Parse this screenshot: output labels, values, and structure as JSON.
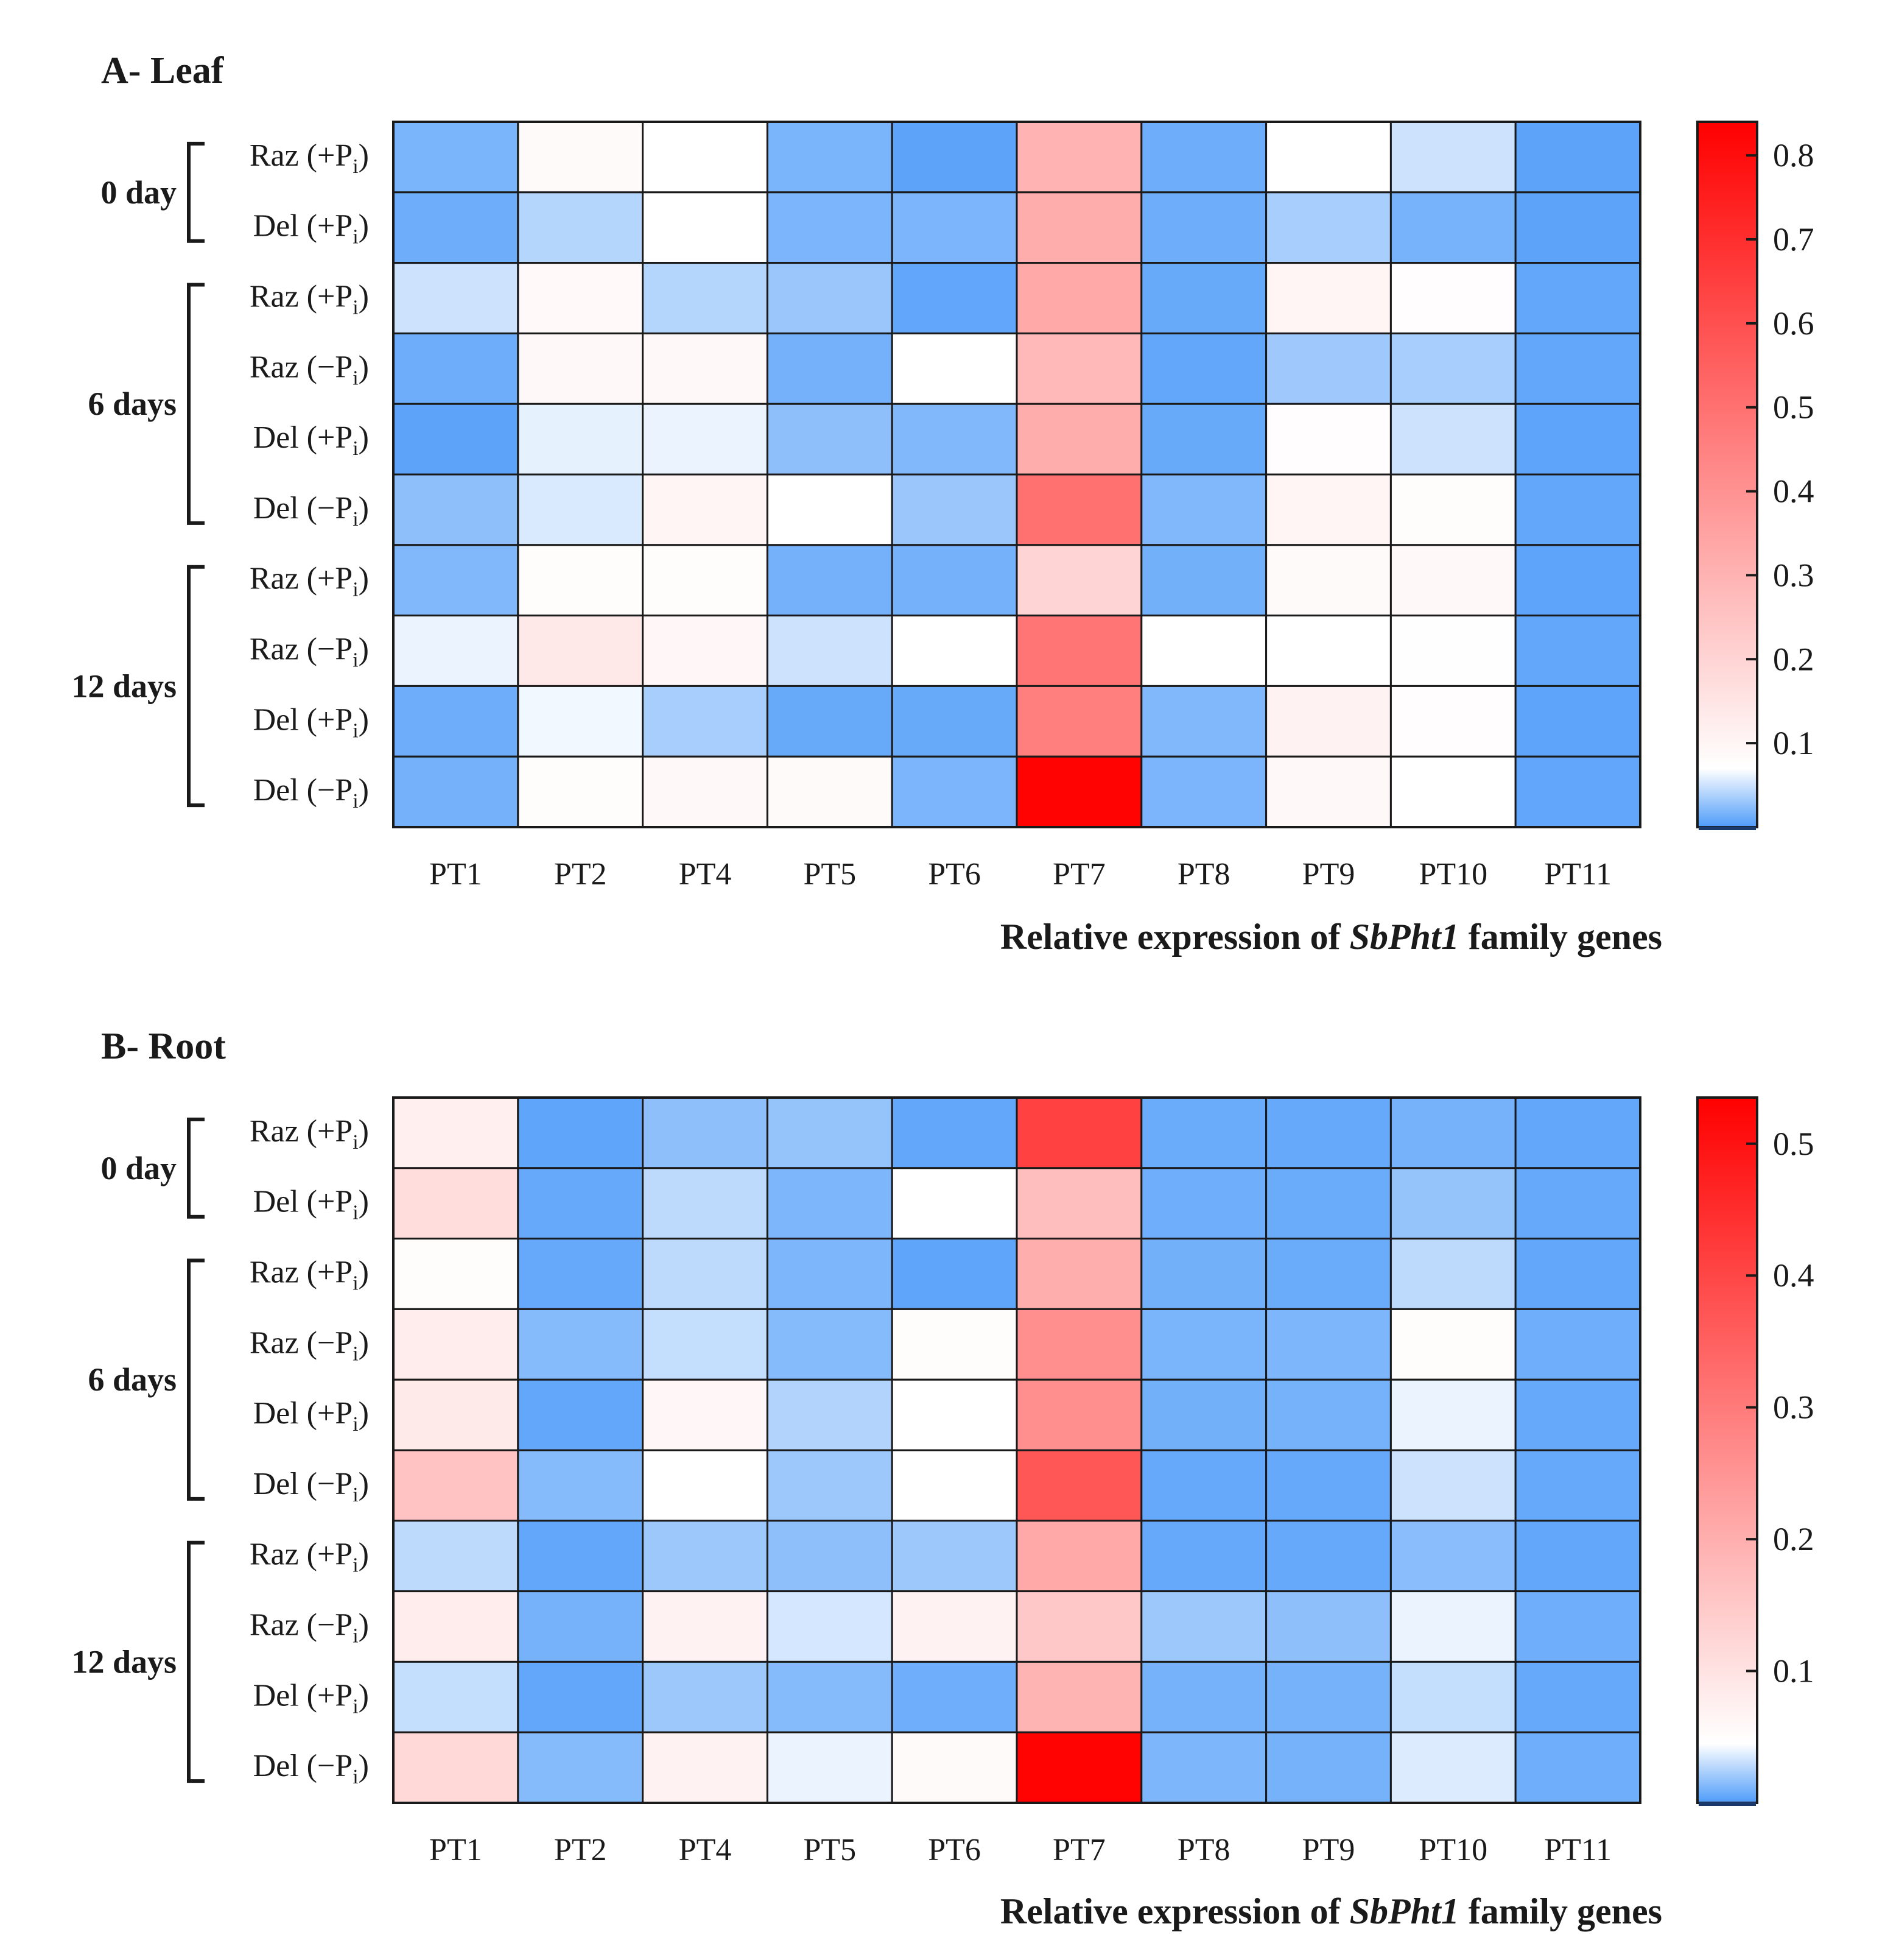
{
  "figure_title": "Relative expression of SbPht1 family genes (Leaf and Root)",
  "chart_data": [
    {
      "type": "heatmap",
      "panel_label": "A- Leaf",
      "xlabel_prefix": "Relative expression of ",
      "xlabel_gene": "SbPht1",
      "xlabel_suffix": " family genes",
      "columns": [
        "PT1",
        "PT2",
        "PT4",
        "PT5",
        "PT6",
        "PT7",
        "PT8",
        "PT9",
        "PT10",
        "PT11"
      ],
      "rows": [
        {
          "name": "Raz",
          "treatment": "+"
        },
        {
          "name": "Del",
          "treatment": "+"
        },
        {
          "name": "Raz",
          "treatment": "+"
        },
        {
          "name": "Raz",
          "treatment": "−"
        },
        {
          "name": "Del",
          "treatment": "+"
        },
        {
          "name": "Del",
          "treatment": "−"
        },
        {
          "name": "Raz",
          "treatment": "+"
        },
        {
          "name": "Raz",
          "treatment": "−"
        },
        {
          "name": "Del",
          "treatment": "+"
        },
        {
          "name": "Del",
          "treatment": "−"
        }
      ],
      "groups": [
        {
          "label": "0 day",
          "start": 0,
          "end": 1
        },
        {
          "label": "6 days",
          "start": 2,
          "end": 5
        },
        {
          "label": "12 days",
          "start": 6,
          "end": 9
        }
      ],
      "values": [
        [
          0.017,
          0.085,
          0.07,
          0.017,
          0.005,
          0.3,
          0.012,
          0.07,
          0.05,
          0.005
        ],
        [
          0.012,
          0.04,
          0.07,
          0.018,
          0.018,
          0.32,
          0.012,
          0.035,
          0.016,
          0.005
        ],
        [
          0.05,
          0.088,
          0.04,
          0.03,
          0.007,
          0.33,
          0.01,
          0.1,
          0.075,
          0.008
        ],
        [
          0.012,
          0.09,
          0.09,
          0.015,
          0.07,
          0.28,
          0.008,
          0.032,
          0.035,
          0.008
        ],
        [
          0.005,
          0.06,
          0.062,
          0.025,
          0.02,
          0.32,
          0.01,
          0.075,
          0.05,
          0.006
        ],
        [
          0.025,
          0.055,
          0.1,
          0.07,
          0.03,
          0.5,
          0.02,
          0.1,
          0.08,
          0.008
        ],
        [
          0.02,
          0.08,
          0.08,
          0.015,
          0.015,
          0.2,
          0.014,
          0.085,
          0.09,
          0.006
        ],
        [
          0.062,
          0.14,
          0.095,
          0.05,
          0.07,
          0.49,
          0.07,
          0.07,
          0.072,
          0.008
        ],
        [
          0.012,
          0.065,
          0.035,
          0.01,
          0.01,
          0.46,
          0.02,
          0.11,
          0.075,
          0.006
        ],
        [
          0.015,
          0.08,
          0.09,
          0.085,
          0.018,
          0.83,
          0.018,
          0.09,
          0.07,
          0.007
        ]
      ],
      "scale": {
        "min": 0.0,
        "max": 0.84
      },
      "colorbar_ticks": [
        0.1,
        0.2,
        0.3,
        0.4,
        0.5,
        0.6,
        0.7,
        0.8
      ],
      "colors": {
        "low": "#4f9cf9",
        "mid": "#ffffff",
        "high": "#ff0000",
        "mid_value": 0.07
      }
    },
    {
      "type": "heatmap",
      "panel_label": "B- Root",
      "xlabel_prefix": "Relative expression of ",
      "xlabel_gene": "SbPht1",
      "xlabel_suffix": " family genes",
      "columns": [
        "PT1",
        "PT2",
        "PT4",
        "PT5",
        "PT6",
        "PT7",
        "PT8",
        "PT9",
        "PT10",
        "PT11"
      ],
      "rows": [
        {
          "name": "Raz",
          "treatment": "+"
        },
        {
          "name": "Del",
          "treatment": "+"
        },
        {
          "name": "Raz",
          "treatment": "+"
        },
        {
          "name": "Raz",
          "treatment": "−"
        },
        {
          "name": "Del",
          "treatment": "+"
        },
        {
          "name": "Del",
          "treatment": "−"
        },
        {
          "name": "Raz",
          "treatment": "+"
        },
        {
          "name": "Raz",
          "treatment": "−"
        },
        {
          "name": "Del",
          "treatment": "+"
        },
        {
          "name": "Del",
          "treatment": "−"
        }
      ],
      "groups": [
        {
          "label": "0 day",
          "start": 0,
          "end": 1
        },
        {
          "label": "6 days",
          "start": 2,
          "end": 5
        },
        {
          "label": "12 days",
          "start": 6,
          "end": 9
        }
      ],
      "values": [
        [
          0.075,
          0.004,
          0.016,
          0.018,
          0.005,
          0.41,
          0.007,
          0.006,
          0.01,
          0.005
        ],
        [
          0.11,
          0.006,
          0.028,
          0.012,
          0.045,
          0.17,
          0.008,
          0.007,
          0.018,
          0.006
        ],
        [
          0.05,
          0.006,
          0.028,
          0.012,
          0.004,
          0.2,
          0.009,
          0.007,
          0.028,
          0.005
        ],
        [
          0.08,
          0.014,
          0.03,
          0.014,
          0.05,
          0.26,
          0.011,
          0.012,
          0.05,
          0.008
        ],
        [
          0.085,
          0.005,
          0.06,
          0.025,
          0.045,
          0.26,
          0.009,
          0.01,
          0.04,
          0.006
        ],
        [
          0.16,
          0.014,
          0.045,
          0.02,
          0.045,
          0.37,
          0.006,
          0.006,
          0.032,
          0.006
        ],
        [
          0.028,
          0.005,
          0.02,
          0.016,
          0.02,
          0.21,
          0.006,
          0.006,
          0.015,
          0.005
        ],
        [
          0.08,
          0.01,
          0.07,
          0.034,
          0.07,
          0.15,
          0.02,
          0.016,
          0.04,
          0.008
        ],
        [
          0.03,
          0.005,
          0.02,
          0.014,
          0.008,
          0.19,
          0.01,
          0.01,
          0.03,
          0.006
        ],
        [
          0.12,
          0.014,
          0.07,
          0.04,
          0.055,
          0.53,
          0.012,
          0.01,
          0.036,
          0.008
        ]
      ],
      "scale": {
        "min": 0.0,
        "max": 0.535
      },
      "colorbar_ticks": [
        0.1,
        0.2,
        0.3,
        0.4,
        0.5
      ],
      "colors": {
        "low": "#4f9cf9",
        "mid": "#ffffff",
        "high": "#ff0000",
        "mid_value": 0.045
      }
    }
  ]
}
